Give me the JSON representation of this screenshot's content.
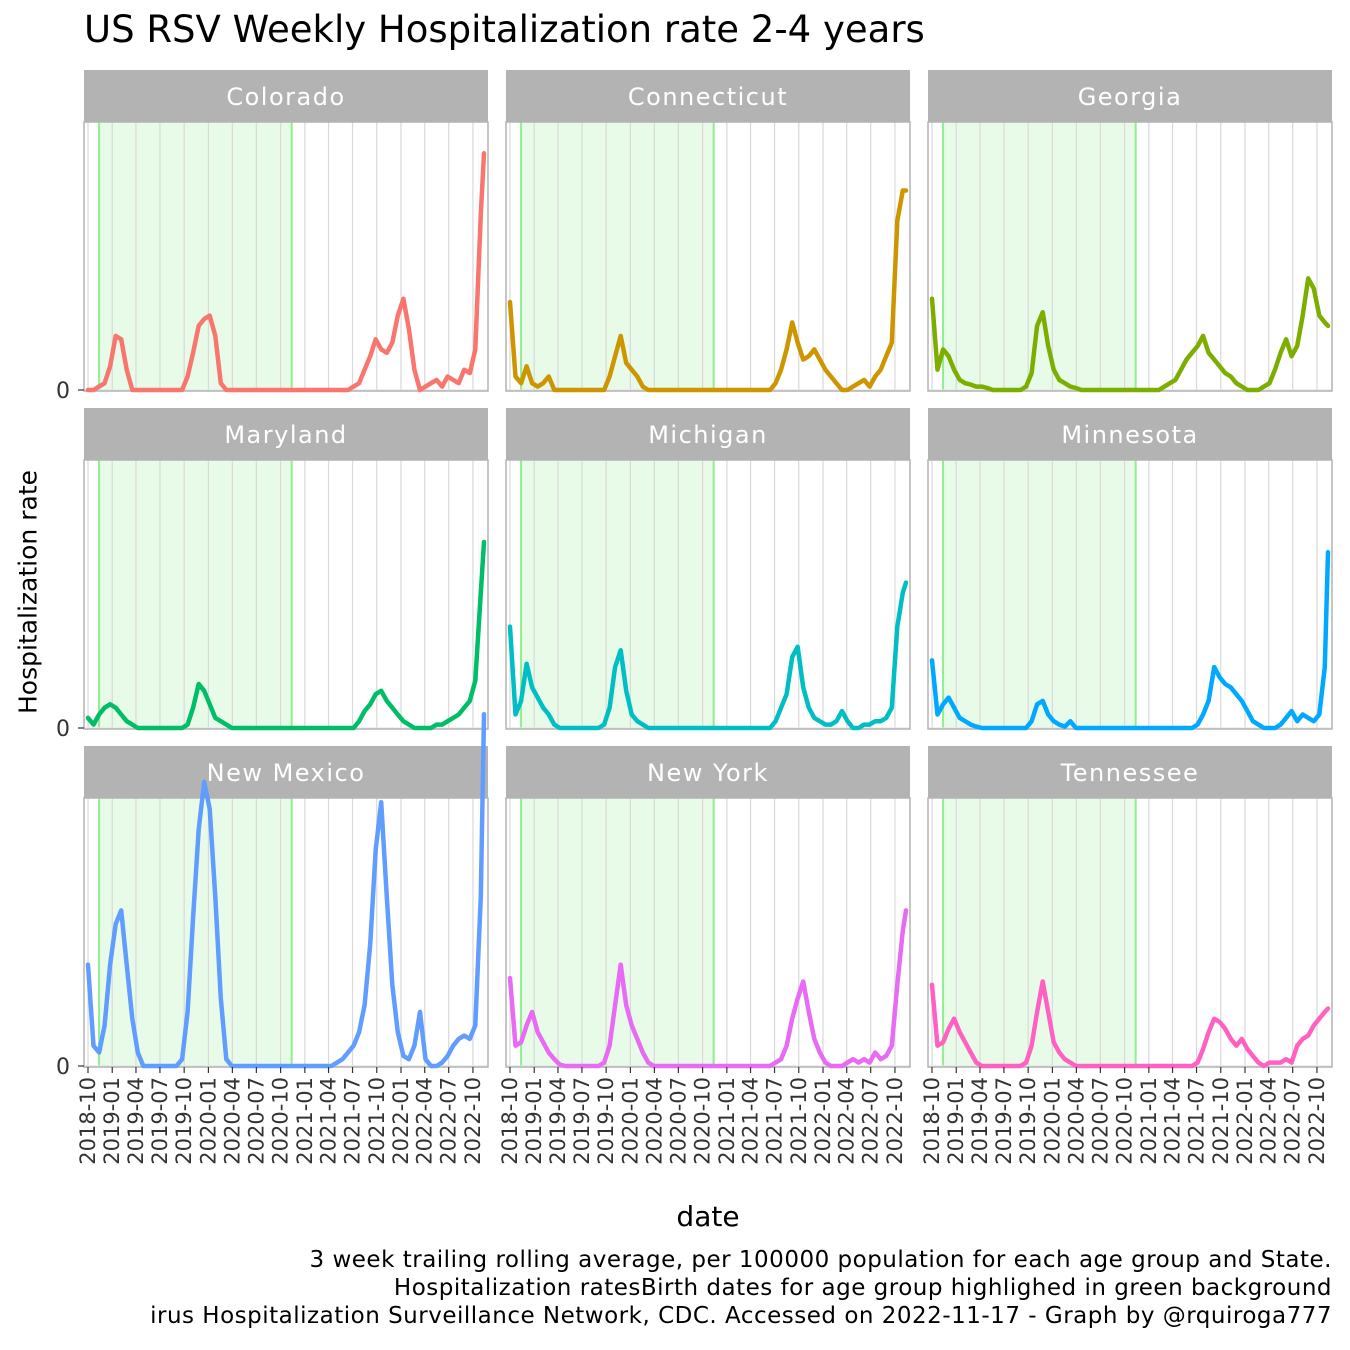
{
  "chart_data": {
    "type": "line",
    "title": "US RSV Weekly Hospitalization rate 2-4 years",
    "xlabel": "date",
    "ylabel": "Hospitalization rate",
    "caption": [
      "3 week trailing rolling average, per 100000 population for each age group and State.",
      "Hospitalization ratesBirth dates for age group highlighed in green background",
      "irus Hospitalization Surveillance Network, CDC. Accessed on 2022-11-17 - Graph by @rquiroga777"
    ],
    "x_ticks": [
      "2018-10",
      "2019-01",
      "2019-04",
      "2019-07",
      "2019-10",
      "2020-01",
      "2020-04",
      "2020-07",
      "2020-10",
      "2021-01",
      "2021-04",
      "2021-07",
      "2021-10",
      "2022-01",
      "2022-04",
      "2022-07",
      "2022-10"
    ],
    "x_range": [
      "2018-10-01",
      "2022-11-12"
    ],
    "y_tick_labels": [
      "0"
    ],
    "birth_date_highlight": {
      "start": "2018-11-12",
      "end": "2020-11-12",
      "color": "#e8fbe8",
      "edge_color": "#90ee90"
    },
    "x": [
      "2018-10-01",
      "2018-10-22",
      "2018-11-12",
      "2018-12-03",
      "2018-12-24",
      "2019-01-14",
      "2019-02-04",
      "2019-02-25",
      "2019-03-18",
      "2019-04-08",
      "2019-04-29",
      "2019-05-20",
      "2019-06-10",
      "2019-07-01",
      "2019-07-22",
      "2019-08-12",
      "2019-09-02",
      "2019-09-23",
      "2019-10-14",
      "2019-11-04",
      "2019-11-25",
      "2019-12-16",
      "2020-01-06",
      "2020-01-27",
      "2020-02-17",
      "2020-03-09",
      "2020-03-30",
      "2020-04-20",
      "2020-05-11",
      "2020-06-01",
      "2020-06-22",
      "2020-07-13",
      "2020-08-03",
      "2020-08-24",
      "2020-09-14",
      "2020-10-05",
      "2020-10-26",
      "2020-11-16",
      "2020-12-07",
      "2020-12-28",
      "2021-01-18",
      "2021-02-08",
      "2021-03-01",
      "2021-03-22",
      "2021-04-12",
      "2021-05-03",
      "2021-05-24",
      "2021-06-14",
      "2021-07-05",
      "2021-07-26",
      "2021-08-16",
      "2021-09-06",
      "2021-09-27",
      "2021-10-18",
      "2021-11-08",
      "2021-11-29",
      "2021-12-20",
      "2022-01-10",
      "2022-01-31",
      "2022-02-21",
      "2022-03-14",
      "2022-04-04",
      "2022-04-25",
      "2022-05-16",
      "2022-06-06",
      "2022-06-27",
      "2022-07-18",
      "2022-08-08",
      "2022-08-29",
      "2022-09-19",
      "2022-10-10",
      "2022-10-31",
      "2022-11-12"
    ],
    "series": [
      {
        "name": "Colorado",
        "color": "#f8766d",
        "values": [
          0,
          0,
          0.05,
          0.1,
          0.35,
          0.8,
          0.75,
          0.3,
          0,
          0,
          0,
          0,
          0,
          0,
          0,
          0,
          0,
          0,
          0.2,
          0.55,
          0.95,
          1.05,
          1.1,
          0.8,
          0.1,
          0,
          0,
          0,
          0,
          0,
          0,
          0,
          0,
          0,
          0,
          0,
          0,
          0,
          0,
          0,
          0,
          0,
          0,
          0,
          0,
          0,
          0,
          0,
          0.05,
          0.1,
          0.3,
          0.5,
          0.75,
          0.6,
          0.55,
          0.7,
          1.1,
          1.35,
          0.9,
          0.3,
          0,
          0.05,
          0.1,
          0.15,
          0.05,
          0.2,
          0.15,
          0.1,
          0.3,
          0.25,
          0.6,
          2.6,
          3.5
        ]
      },
      {
        "name": "Connecticut",
        "color": "#cd9600",
        "values": [
          1.3,
          0.2,
          0.1,
          0.35,
          0.1,
          0.05,
          0.1,
          0.2,
          0,
          0,
          0,
          0,
          0,
          0,
          0,
          0,
          0,
          0,
          0.2,
          0.5,
          0.8,
          0.4,
          0.3,
          0.2,
          0.05,
          0,
          0,
          0,
          0,
          0,
          0,
          0,
          0,
          0,
          0,
          0,
          0,
          0,
          0,
          0,
          0,
          0,
          0,
          0,
          0,
          0,
          0,
          0,
          0.1,
          0.3,
          0.6,
          1.0,
          0.7,
          0.45,
          0.5,
          0.6,
          0.45,
          0.3,
          0.2,
          0.1,
          0,
          0,
          0.05,
          0.1,
          0.15,
          0.05,
          0.2,
          0.3,
          0.5,
          0.7,
          2.5,
          2.95,
          2.95
        ]
      },
      {
        "name": "Georgia",
        "color": "#7cae00",
        "values": [
          1.35,
          0.3,
          0.6,
          0.5,
          0.3,
          0.15,
          0.1,
          0.08,
          0.05,
          0.05,
          0.03,
          0,
          0,
          0,
          0,
          0,
          0,
          0.05,
          0.25,
          0.95,
          1.15,
          0.65,
          0.3,
          0.15,
          0.1,
          0.05,
          0.03,
          0,
          0,
          0,
          0,
          0,
          0,
          0,
          0,
          0,
          0,
          0,
          0,
          0,
          0,
          0,
          0.05,
          0.1,
          0.15,
          0.3,
          0.45,
          0.55,
          0.65,
          0.8,
          0.55,
          0.45,
          0.35,
          0.25,
          0.2,
          0.1,
          0.05,
          0,
          0,
          0,
          0.05,
          0.1,
          0.3,
          0.55,
          0.75,
          0.5,
          0.65,
          1.1,
          1.65,
          1.5,
          1.1,
          1.0,
          0.95
        ]
      },
      {
        "name": "Maryland",
        "color": "#00be67",
        "values": [
          0.15,
          0.05,
          0.2,
          0.3,
          0.35,
          0.3,
          0.2,
          0.1,
          0.05,
          0,
          0,
          0,
          0,
          0,
          0,
          0,
          0,
          0,
          0.05,
          0.3,
          0.65,
          0.55,
          0.35,
          0.15,
          0.1,
          0.05,
          0,
          0,
          0,
          0,
          0,
          0,
          0,
          0,
          0,
          0,
          0,
          0,
          0,
          0,
          0,
          0,
          0,
          0,
          0,
          0,
          0,
          0,
          0,
          0.1,
          0.25,
          0.35,
          0.5,
          0.55,
          0.4,
          0.3,
          0.2,
          0.1,
          0.05,
          0,
          0,
          0,
          0,
          0.05,
          0.05,
          0.1,
          0.15,
          0.2,
          0.3,
          0.4,
          0.7,
          2.0,
          2.75
        ]
      },
      {
        "name": "Michigan",
        "color": "#00bfc4",
        "values": [
          1.5,
          0.2,
          0.4,
          0.95,
          0.6,
          0.45,
          0.3,
          0.2,
          0.05,
          0,
          0,
          0,
          0,
          0,
          0,
          0,
          0,
          0.05,
          0.3,
          0.9,
          1.15,
          0.55,
          0.2,
          0.1,
          0.05,
          0,
          0,
          0,
          0,
          0,
          0,
          0,
          0,
          0,
          0,
          0,
          0,
          0,
          0,
          0,
          0,
          0,
          0,
          0,
          0,
          0,
          0,
          0,
          0.1,
          0.3,
          0.5,
          1.05,
          1.2,
          0.6,
          0.3,
          0.15,
          0.1,
          0.05,
          0.05,
          0.1,
          0.25,
          0.1,
          0,
          0,
          0.05,
          0.05,
          0.1,
          0.1,
          0.15,
          0.3,
          1.5,
          2.0,
          2.15
        ]
      },
      {
        "name": "Minnesota",
        "color": "#00a9ff",
        "values": [
          1.0,
          0.2,
          0.35,
          0.45,
          0.3,
          0.15,
          0.1,
          0.05,
          0.02,
          0,
          0,
          0,
          0,
          0,
          0,
          0,
          0,
          0,
          0.1,
          0.35,
          0.4,
          0.2,
          0.1,
          0.05,
          0.02,
          0.1,
          0,
          0,
          0,
          0,
          0,
          0,
          0,
          0,
          0,
          0,
          0,
          0,
          0,
          0,
          0,
          0,
          0,
          0,
          0,
          0,
          0,
          0,
          0.05,
          0.2,
          0.4,
          0.9,
          0.75,
          0.65,
          0.6,
          0.5,
          0.4,
          0.25,
          0.1,
          0.05,
          0,
          0,
          0,
          0.05,
          0.15,
          0.25,
          0.1,
          0.2,
          0.15,
          0.1,
          0.2,
          0.9,
          2.6
        ]
      },
      {
        "name": "New Mexico",
        "color": "#619cff",
        "values": [
          1.5,
          0.3,
          0.2,
          0.6,
          1.5,
          2.1,
          2.3,
          1.5,
          0.7,
          0.2,
          0,
          0,
          0,
          0,
          0,
          0,
          0,
          0.1,
          0.8,
          2.2,
          3.5,
          4.2,
          3.8,
          2.5,
          1.0,
          0.1,
          0,
          0,
          0,
          0,
          0,
          0,
          0,
          0,
          0,
          0,
          0,
          0,
          0,
          0,
          0,
          0,
          0,
          0,
          0,
          0.05,
          0.1,
          0.2,
          0.3,
          0.5,
          0.9,
          1.8,
          3.2,
          3.9,
          2.5,
          1.2,
          0.5,
          0.15,
          0.1,
          0.3,
          0.8,
          0.1,
          0,
          0,
          0.05,
          0.15,
          0.3,
          0.4,
          0.45,
          0.4,
          0.6,
          2.5,
          5.2
        ]
      },
      {
        "name": "New York",
        "color": "#e76bf3",
        "values": [
          1.3,
          0.3,
          0.35,
          0.6,
          0.8,
          0.5,
          0.35,
          0.2,
          0.1,
          0.02,
          0,
          0,
          0,
          0,
          0,
          0,
          0,
          0.05,
          0.3,
          0.9,
          1.5,
          0.9,
          0.6,
          0.4,
          0.2,
          0.05,
          0,
          0,
          0,
          0,
          0,
          0,
          0,
          0,
          0,
          0,
          0,
          0,
          0,
          0,
          0,
          0,
          0,
          0,
          0,
          0,
          0,
          0,
          0.05,
          0.1,
          0.3,
          0.7,
          1.0,
          1.25,
          0.8,
          0.4,
          0.2,
          0.05,
          0,
          0,
          0,
          0.05,
          0.1,
          0.05,
          0.1,
          0.05,
          0.2,
          0.1,
          0.15,
          0.3,
          1.2,
          2.0,
          2.3
        ]
      },
      {
        "name": "Tennessee",
        "color": "#ff61c3",
        "values": [
          1.2,
          0.3,
          0.35,
          0.55,
          0.7,
          0.5,
          0.35,
          0.2,
          0.05,
          0,
          0,
          0,
          0,
          0,
          0,
          0,
          0,
          0.05,
          0.3,
          0.8,
          1.25,
          0.8,
          0.35,
          0.2,
          0.1,
          0.05,
          0,
          0,
          0,
          0,
          0,
          0,
          0,
          0,
          0,
          0,
          0,
          0,
          0,
          0,
          0,
          0,
          0,
          0,
          0,
          0,
          0,
          0,
          0.05,
          0.25,
          0.5,
          0.7,
          0.65,
          0.55,
          0.4,
          0.3,
          0.4,
          0.25,
          0.15,
          0.05,
          0,
          0.05,
          0.05,
          0.05,
          0.1,
          0.05,
          0.3,
          0.4,
          0.45,
          0.6,
          0.7,
          0.8,
          0.85
        ]
      }
    ]
  }
}
